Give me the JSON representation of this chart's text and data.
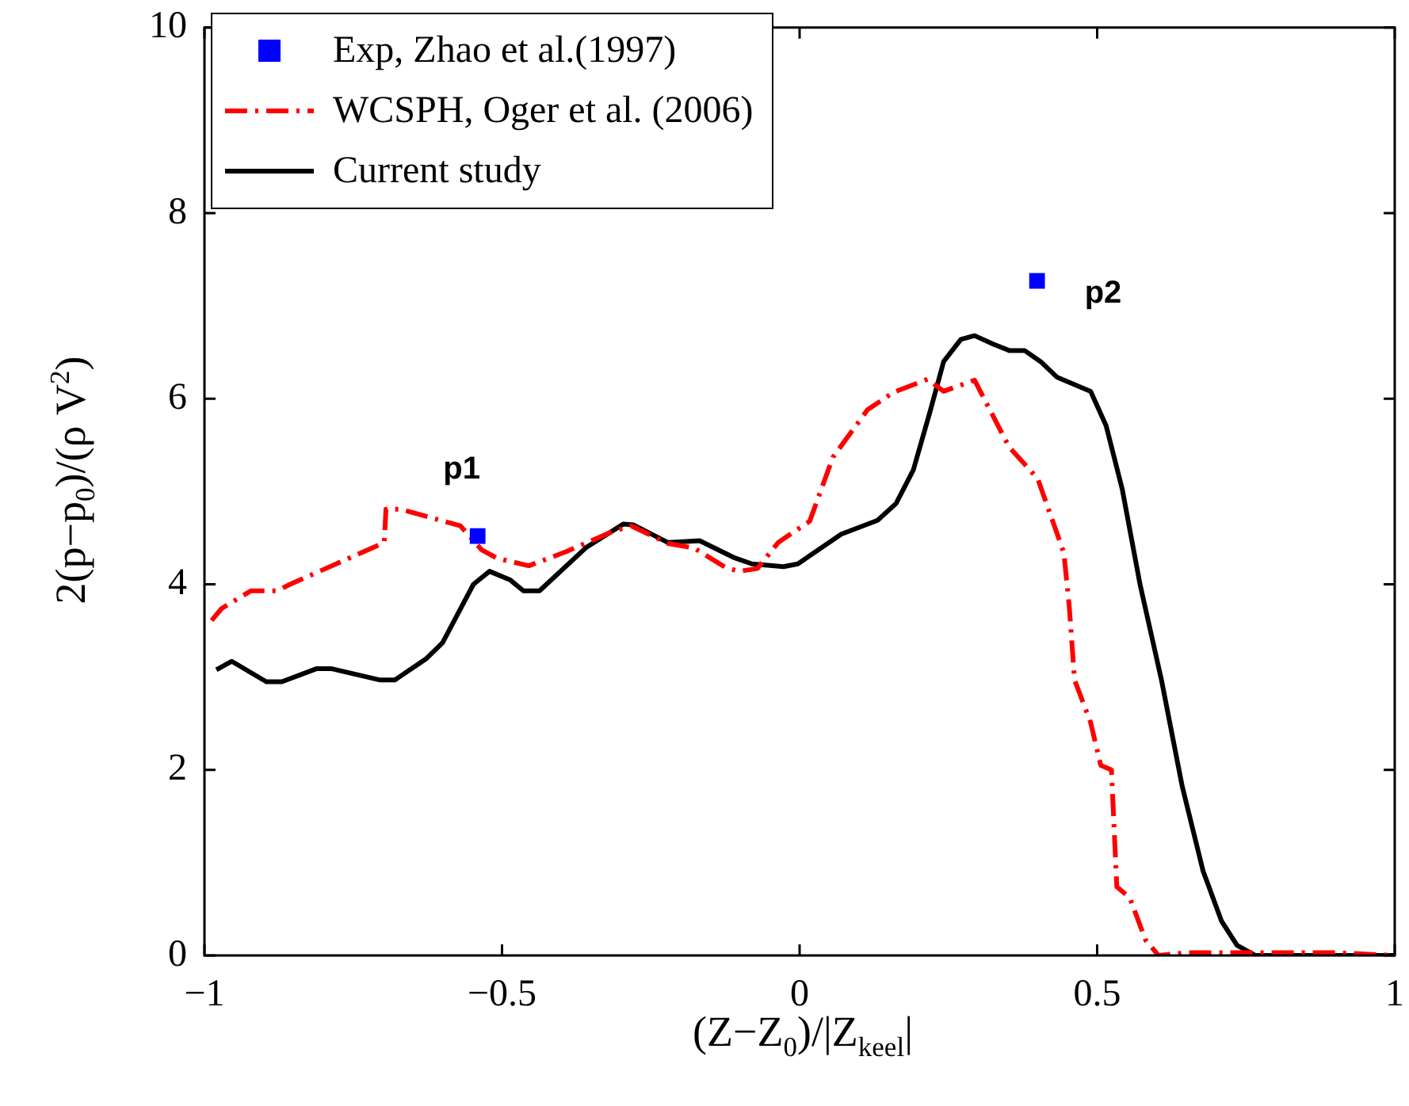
{
  "chart_data": {
    "type": "line",
    "xlabel": "(Z−Z$_{0}$)/|Z$_{keel}$|",
    "ylabel": "2(p−p$_{0}$)/(ρ V$^{2}$)",
    "xlim": [
      -1,
      1
    ],
    "xticks": [
      -1,
      -0.5,
      0,
      0.5,
      1
    ],
    "ylim": [
      0,
      10
    ],
    "yticks": [
      0,
      2,
      4,
      6,
      8,
      10
    ],
    "grid": false,
    "legend": "top left",
    "marker": "none",
    "series": [
      {
        "name": "Exp, Zhao et al.(1997)",
        "type": "scatter",
        "marker": "square",
        "color": "#0000ff",
        "x": [
          -0.541,
          0.399
        ],
        "values": [
          4.52,
          7.27
        ]
      },
      {
        "name": "WCSPH, Oger et al. (2006)",
        "color": "#ff0000",
        "line_style": "dashdot",
        "x": [
          -0.988,
          -0.971,
          -0.922,
          -0.878,
          -0.856,
          -0.698,
          -0.695,
          -0.671,
          -0.57,
          -0.534,
          -0.508,
          -0.455,
          -0.393,
          -0.314,
          -0.283,
          -0.221,
          -0.177,
          -0.124,
          -0.102,
          -0.071,
          -0.036,
          0.017,
          0.056,
          0.114,
          0.158,
          0.215,
          0.242,
          0.294,
          0.352,
          0.4,
          0.444,
          0.453,
          0.462,
          0.489,
          0.506,
          0.524,
          0.533,
          0.555,
          0.581,
          0.603,
          0.65,
          0.9,
          1
        ],
        "values": [
          3.61,
          3.74,
          3.93,
          3.93,
          4.0,
          4.45,
          4.81,
          4.81,
          4.63,
          4.37,
          4.28,
          4.2,
          4.35,
          4.57,
          4.63,
          4.44,
          4.39,
          4.18,
          4.14,
          4.17,
          4.45,
          4.68,
          5.37,
          5.88,
          6.07,
          6.21,
          6.08,
          6.2,
          5.48,
          5.14,
          4.34,
          3.77,
          2.97,
          2.51,
          2.05,
          2.0,
          0.74,
          0.62,
          0.17,
          0.0,
          0.03,
          0.03,
          0
        ]
      },
      {
        "name": "Current study",
        "color": "#000000",
        "line_style": "solid",
        "x": [
          -0.98,
          -0.954,
          -0.896,
          -0.87,
          -0.812,
          -0.786,
          -0.706,
          -0.68,
          -0.627,
          -0.6,
          -0.548,
          -0.521,
          -0.487,
          -0.464,
          -0.437,
          -0.358,
          -0.296,
          -0.279,
          -0.221,
          -0.168,
          -0.111,
          -0.08,
          -0.027,
          -0.003,
          0.07,
          0.131,
          0.162,
          0.191,
          0.22,
          0.242,
          0.271,
          0.294,
          0.325,
          0.352,
          0.378,
          0.405,
          0.433,
          0.489,
          0.515,
          0.542,
          0.572,
          0.608,
          0.643,
          0.678,
          0.709,
          0.735,
          0.766,
          1
        ],
        "values": [
          3.08,
          3.17,
          2.95,
          2.95,
          3.09,
          3.09,
          2.97,
          2.97,
          3.2,
          3.37,
          4.0,
          4.14,
          4.05,
          3.93,
          3.93,
          4.4,
          4.65,
          4.64,
          4.45,
          4.47,
          4.29,
          4.22,
          4.19,
          4.22,
          4.54,
          4.69,
          4.87,
          5.23,
          5.88,
          6.4,
          6.64,
          6.68,
          6.59,
          6.52,
          6.52,
          6.4,
          6.23,
          6.08,
          5.71,
          5.03,
          4.0,
          2.97,
          1.82,
          0.91,
          0.37,
          0.11,
          0.0,
          0.0
        ]
      }
    ],
    "annotations": [
      {
        "text": "p1",
        "x": -0.541,
        "y": 4.52
      },
      {
        "text": "p2",
        "x": 0.399,
        "y": 7.27
      }
    ]
  }
}
